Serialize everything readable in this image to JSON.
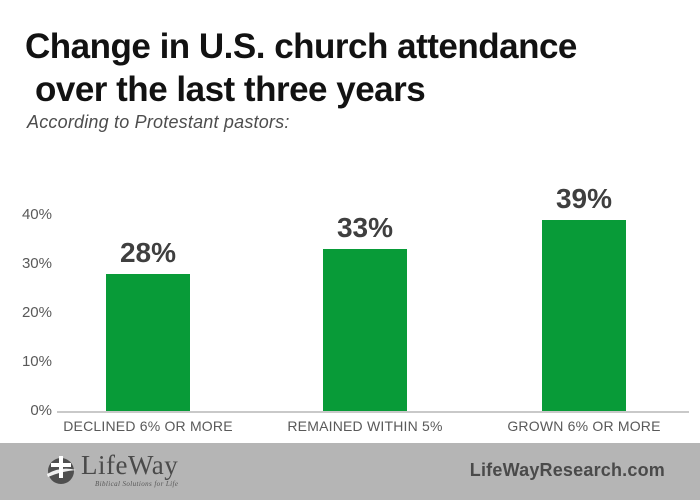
{
  "header": {
    "title_line1": "Change in U.S. church attendance",
    "title_line2": "over the last three years",
    "subtitle": "According to Protestant pastors:"
  },
  "chart_data": {
    "type": "bar",
    "title": "Change in U.S. church attendance over the last three years",
    "subtitle": "According to Protestant pastors:",
    "categories": [
      "DECLINED 6% OR MORE",
      "REMAINED WITHIN 5%",
      "GROWN 6% OR MORE"
    ],
    "values": [
      28,
      33,
      39
    ],
    "value_labels": [
      "28%",
      "33%",
      "39%"
    ],
    "ylim": [
      0,
      40
    ],
    "ytick_values": [
      0,
      10,
      20,
      30,
      40
    ],
    "ytick_labels": [
      "0%",
      "10%",
      "20%",
      "30%",
      "40%"
    ],
    "xlabel": "",
    "ylabel": "",
    "grid": false,
    "legend": "none",
    "bar_color": "#089b38"
  },
  "footer": {
    "logo_name": "LifeWay",
    "logo_tagline": "Biblical Solutions for Life",
    "site_label": "LifeWayResearch.com"
  },
  "colors": {
    "bar_green": "#089b38",
    "title_text": "#121212",
    "subtitle_text": "#4d4d4d",
    "axis_text": "#595959",
    "value_text": "#3f3f3f",
    "axis_line": "#c9c9c9",
    "footer_background": "#b5b5b5",
    "footer_text": "#4a4a4a"
  }
}
